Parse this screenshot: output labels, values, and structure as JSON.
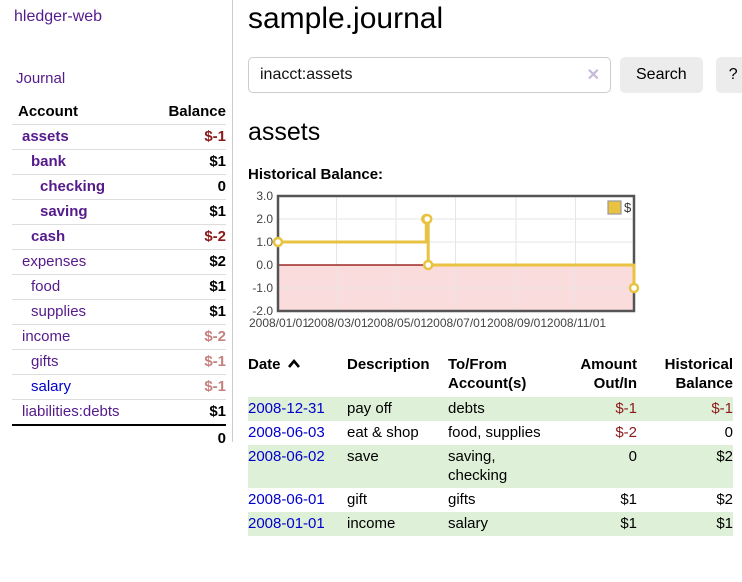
{
  "app": {
    "brand": "hledger-web"
  },
  "sidebar": {
    "nav": {
      "journal": "Journal"
    },
    "accounts_header": {
      "account": "Account",
      "balance": "Balance"
    },
    "accounts": [
      {
        "name": "assets",
        "depth": 0,
        "bold": true,
        "unvisited": false,
        "balance": "$-1",
        "balance_style": "neg"
      },
      {
        "name": "bank",
        "depth": 1,
        "bold": true,
        "unvisited": false,
        "balance": "$1",
        "balance_style": "pos"
      },
      {
        "name": "checking",
        "depth": 2,
        "bold": true,
        "unvisited": false,
        "balance": "0",
        "balance_style": "pos"
      },
      {
        "name": "saving",
        "depth": 2,
        "bold": true,
        "unvisited": false,
        "balance": "$1",
        "balance_style": "pos"
      },
      {
        "name": "cash",
        "depth": 1,
        "bold": true,
        "unvisited": false,
        "balance": "$-2",
        "balance_style": "neg"
      },
      {
        "name": "expenses",
        "depth": 0,
        "bold": false,
        "unvisited": false,
        "balance": "$2",
        "balance_style": "pos"
      },
      {
        "name": "food",
        "depth": 1,
        "bold": false,
        "unvisited": false,
        "balance": "$1",
        "balance_style": "pos"
      },
      {
        "name": "supplies",
        "depth": 1,
        "bold": false,
        "unvisited": false,
        "balance": "$1",
        "balance_style": "pos"
      },
      {
        "name": "income",
        "depth": 0,
        "bold": false,
        "unvisited": false,
        "balance": "$-2",
        "balance_style": "neg-soft"
      },
      {
        "name": "gifts",
        "depth": 1,
        "bold": false,
        "unvisited": false,
        "balance": "$-1",
        "balance_style": "neg-soft"
      },
      {
        "name": "salary",
        "depth": 1,
        "bold": false,
        "unvisited": true,
        "balance": "$-1",
        "balance_style": "neg-soft"
      },
      {
        "name": "liabilities:debts",
        "depth": 0,
        "bold": false,
        "unvisited": false,
        "balance": "$1",
        "balance_style": "pos"
      }
    ],
    "total": "0"
  },
  "header": {
    "title": "sample.journal"
  },
  "search": {
    "value": "inacct:assets",
    "clear_icon": "✕",
    "button": "Search",
    "help_button": "?"
  },
  "account_page": {
    "title": "assets",
    "chart_label": "Historical Balance:"
  },
  "chart_data": {
    "type": "line",
    "step": true,
    "title": "",
    "x_range": [
      "2008-01-01",
      "2008-12-31"
    ],
    "x_ticks": [
      "2008/01/01",
      "2008/03/01",
      "2008/05/01",
      "2008/07/01",
      "2008/09/01",
      "2008/11/01"
    ],
    "ylim": [
      -2,
      3
    ],
    "y_tick_step": 1,
    "series": [
      {
        "name": "$",
        "color": "#E8C240",
        "points": [
          {
            "date": "2008-01-01",
            "value": 1
          },
          {
            "date": "2008-06-01",
            "value": 2
          },
          {
            "date": "2008-06-02",
            "value": 2
          },
          {
            "date": "2008-06-03",
            "value": 0
          },
          {
            "date": "2008-12-31",
            "value": -1
          }
        ]
      }
    ],
    "legend_position": "top-right",
    "grid": true,
    "colors": {
      "negative_fill": "#fbdcdc",
      "zero_line": "#8b0000",
      "border": "#545454",
      "gridline": "#e6e6e6",
      "tick_text": "#444444"
    }
  },
  "register": {
    "headers": {
      "date": "Date",
      "description": "Description",
      "tofrom": "To/From Account(s)",
      "amount": "Amount Out/In",
      "balance": "Historical Balance"
    },
    "rows": [
      {
        "date": "2008-12-31",
        "description": "pay off",
        "accounts": "debts",
        "amount": "$-1",
        "amount_neg": true,
        "balance": "$-1",
        "balance_neg": true
      },
      {
        "date": "2008-06-03",
        "description": "eat & shop",
        "accounts": "food, supplies",
        "amount": "$-2",
        "amount_neg": true,
        "balance": "0",
        "balance_neg": false
      },
      {
        "date": "2008-06-02",
        "description": "save",
        "accounts": "saving, checking",
        "amount": "0",
        "amount_neg": false,
        "balance": "$2",
        "balance_neg": false
      },
      {
        "date": "2008-06-01",
        "description": "gift",
        "accounts": "gifts",
        "amount": "$1",
        "amount_neg": false,
        "balance": "$2",
        "balance_neg": false
      },
      {
        "date": "2008-01-01",
        "description": "income",
        "accounts": "salary",
        "amount": "$1",
        "amount_neg": false,
        "balance": "$1",
        "balance_neg": false
      }
    ]
  },
  "ui_colors": {
    "visited_link": "#551a8b",
    "unvisited_link": "#0000cc",
    "negative_amount": "#8b1a1a",
    "soft_negative_amount": "#c5817e",
    "row_stripe_green": "#dff0d8"
  }
}
